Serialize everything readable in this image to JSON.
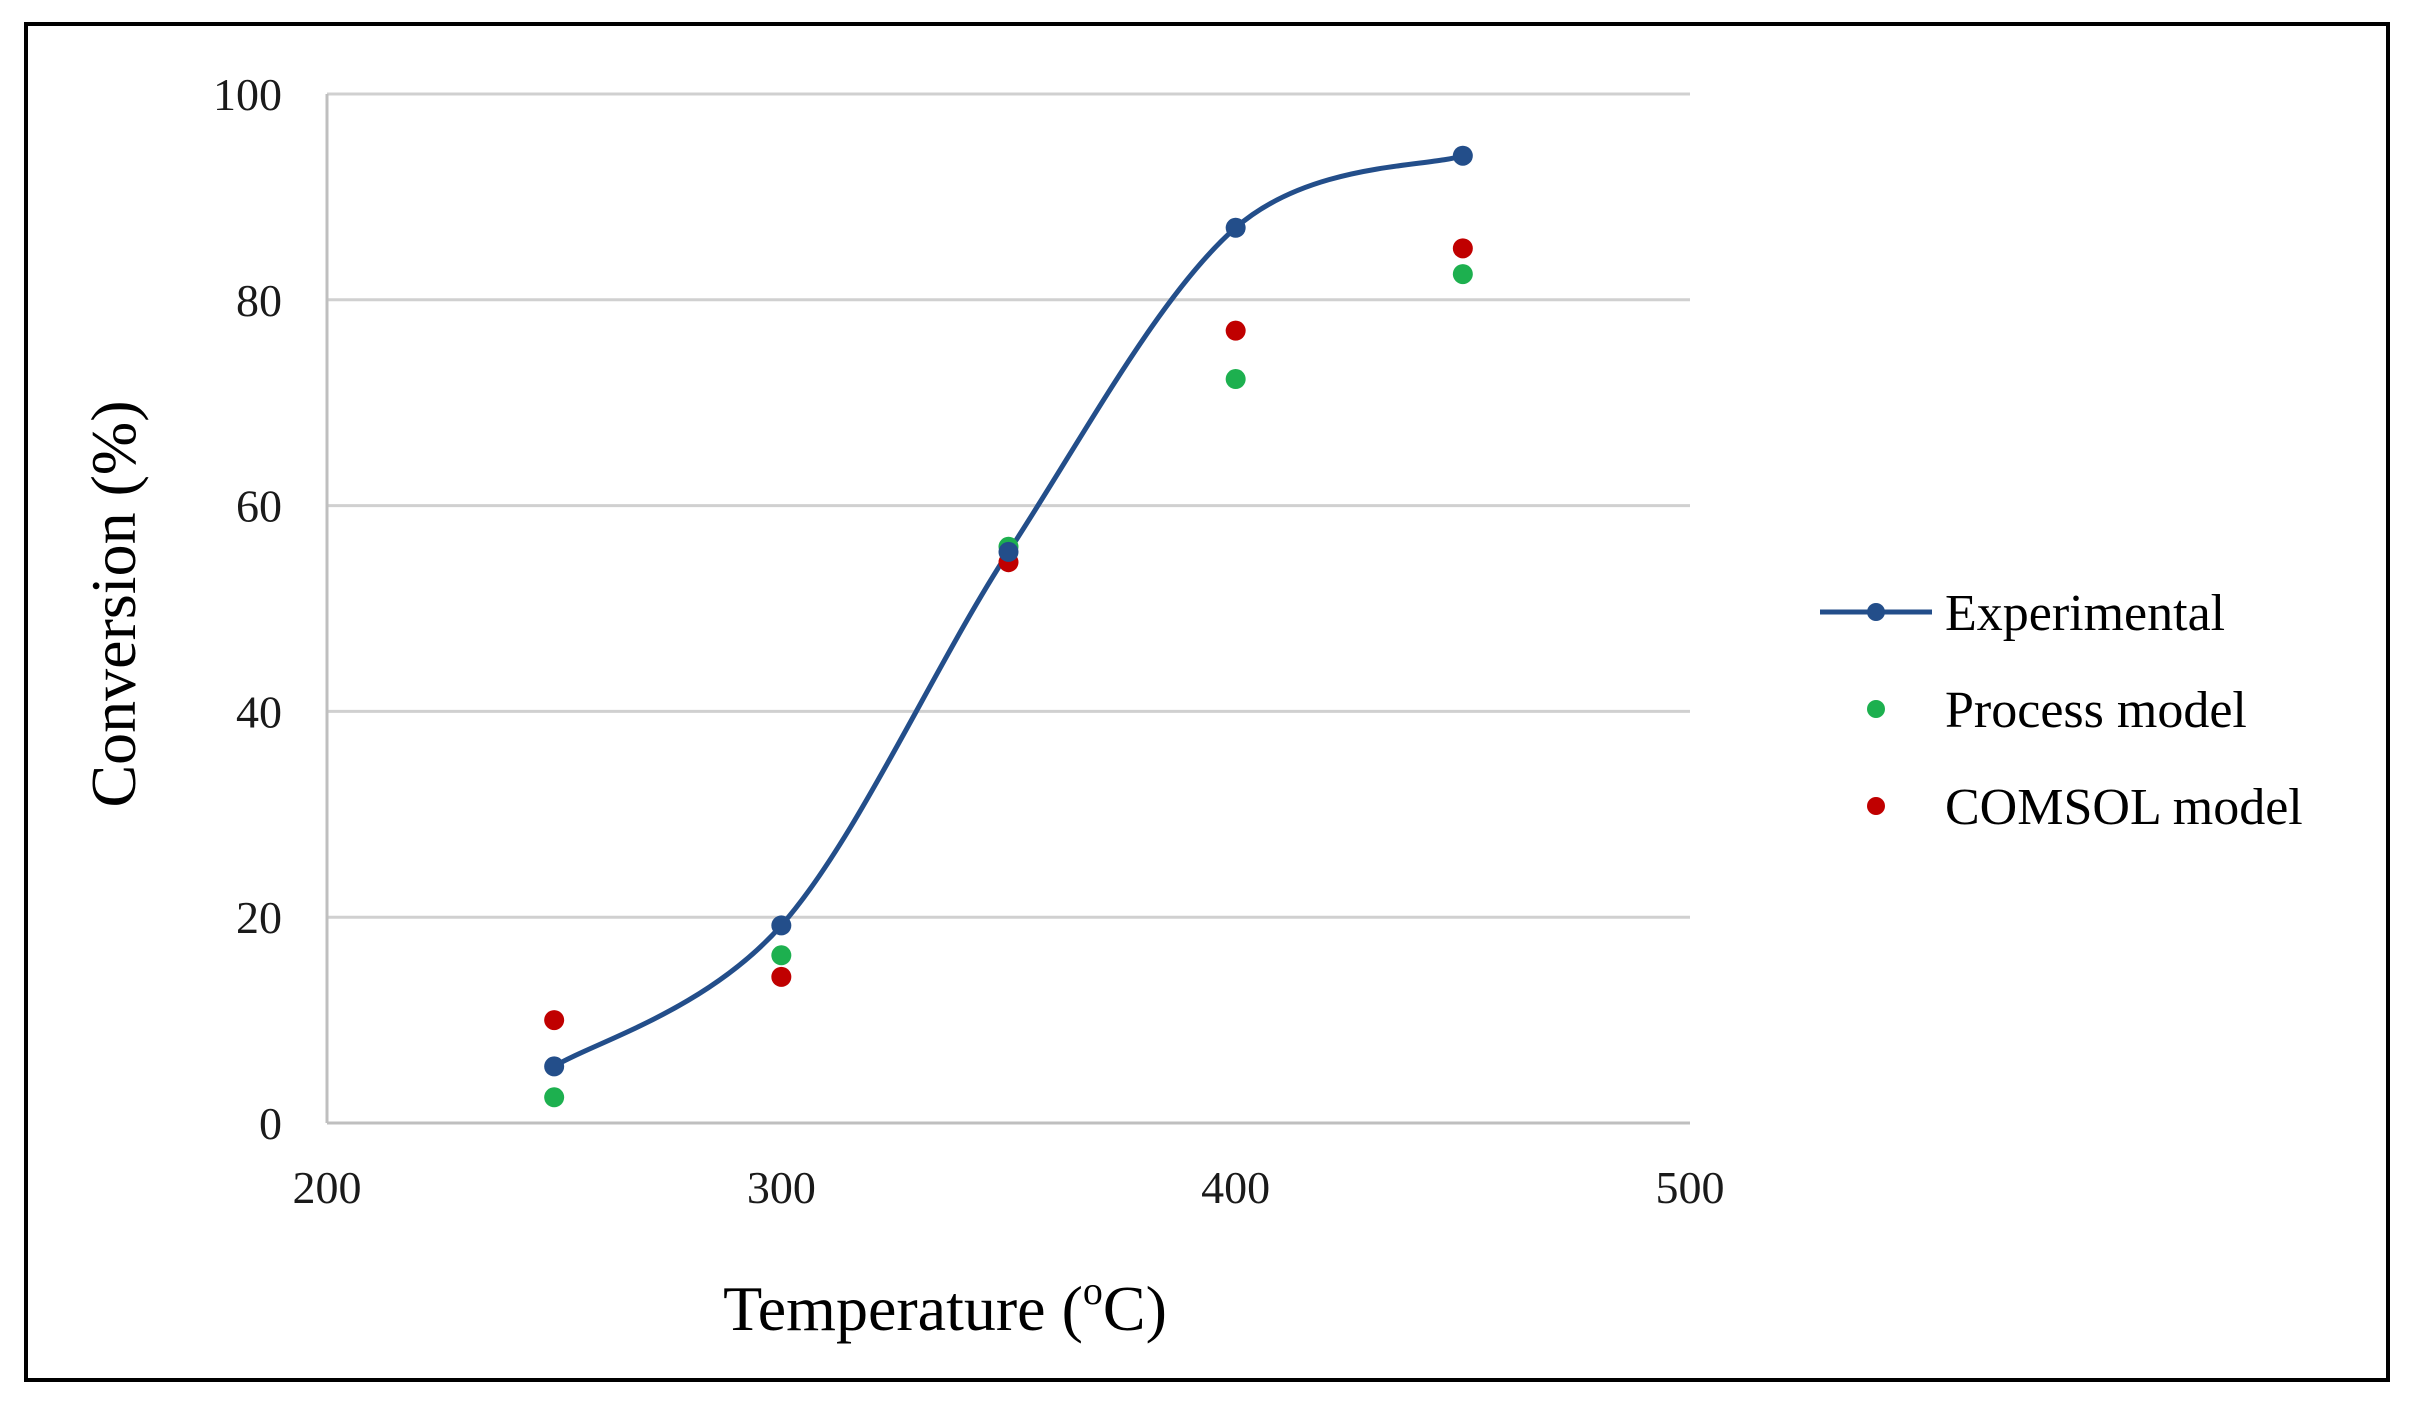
{
  "chart_data": {
    "type": "line",
    "title": "",
    "xlabel": "Temperature (",
    "xlabel_sup": "o",
    "xlabel_end": "C)",
    "ylabel": "Conversion (%)",
    "xlim": [
      200,
      500
    ],
    "ylim": [
      0,
      100
    ],
    "xticks": [
      "200",
      "300",
      "400",
      "500"
    ],
    "yticks": [
      "0",
      "20",
      "40",
      "60",
      "80",
      "100"
    ],
    "grid": "horizontal",
    "legend_position": "right",
    "series": [
      {
        "name": "Experimental",
        "style": "line-marker",
        "color": "#234E8A",
        "x": [
          250,
          300,
          350,
          400,
          450
        ],
        "y": [
          5.5,
          19.2,
          55.5,
          87,
          94
        ]
      },
      {
        "name": "Process model",
        "style": "marker",
        "color": "#1DB04F",
        "x": [
          250,
          300,
          350,
          400,
          450
        ],
        "y": [
          2.5,
          16.3,
          56,
          72.3,
          82.5
        ]
      },
      {
        "name": "COMSOL model",
        "style": "marker",
        "color": "#C00000",
        "x": [
          250,
          300,
          350,
          400,
          450
        ],
        "y": [
          10,
          14.2,
          54.5,
          77,
          85
        ]
      }
    ]
  }
}
